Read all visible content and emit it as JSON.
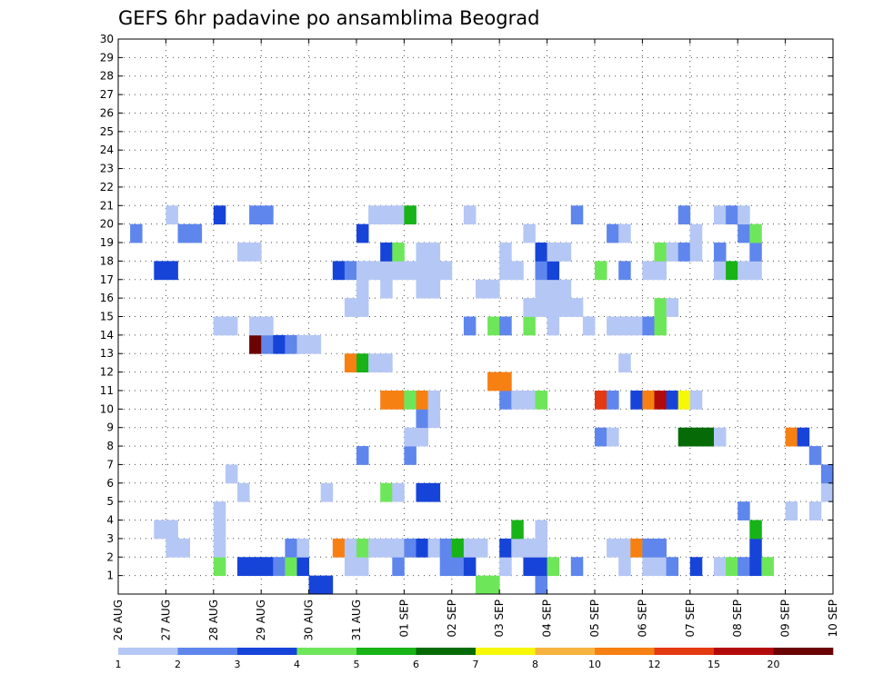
{
  "chart_data": {
    "type": "heatmap",
    "title": "GEFS 6hr padavine po ansamblima Beograd",
    "xlabel": "",
    "ylabel": "",
    "x_ticks": [
      "26 AUG",
      "27 AUG",
      "28 AUG",
      "29 AUG",
      "30 AUG",
      "31 AUG",
      "01 SEP",
      "02 SEP",
      "03 SEP",
      "04 SEP",
      "05 SEP",
      "06 SEP",
      "07 SEP",
      "08 SEP",
      "09 SEP",
      "10 SEP"
    ],
    "y_ticks": [
      "1",
      "2",
      "3",
      "4",
      "5",
      "6",
      "7",
      "8",
      "9",
      "10",
      "11",
      "12",
      "13",
      "14",
      "15",
      "16",
      "17",
      "18",
      "19",
      "20",
      "21",
      "22",
      "23",
      "24",
      "25",
      "26",
      "27",
      "28",
      "29",
      "30"
    ],
    "xlim": [
      0,
      60
    ],
    "ylim": [
      0,
      30
    ],
    "grid": true,
    "colorbar": {
      "labels": [
        "1",
        "2",
        "3",
        "4",
        "5",
        "6",
        "7",
        "8",
        "10",
        "12",
        "15",
        "20"
      ],
      "colors": [
        "#b5c7f4",
        "#5f86ec",
        "#1744d8",
        "#6ee65a",
        "#17b317",
        "#066b06",
        "#f7f708",
        "#f7b340",
        "#f78012",
        "#e33a12",
        "#b20a0a",
        "#6b0303"
      ]
    },
    "cells": [
      [
        16,
        0,
        3
      ],
      [
        17,
        0,
        3
      ],
      [
        30,
        0,
        4
      ],
      [
        31,
        0,
        4
      ],
      [
        35,
        0,
        2
      ],
      [
        8,
        1,
        4
      ],
      [
        10,
        1,
        3
      ],
      [
        11,
        1,
        3
      ],
      [
        12,
        1,
        3
      ],
      [
        13,
        1,
        2
      ],
      [
        14,
        1,
        4
      ],
      [
        15,
        1,
        3
      ],
      [
        19,
        1,
        1
      ],
      [
        20,
        1,
        1
      ],
      [
        23,
        1,
        2
      ],
      [
        27,
        1,
        2
      ],
      [
        28,
        1,
        2
      ],
      [
        29,
        1,
        3
      ],
      [
        32,
        1,
        1
      ],
      [
        34,
        1,
        3
      ],
      [
        35,
        1,
        3
      ],
      [
        36,
        1,
        4
      ],
      [
        38,
        1,
        2
      ],
      [
        42,
        1,
        1
      ],
      [
        44,
        1,
        1
      ],
      [
        45,
        1,
        1
      ],
      [
        46,
        1,
        2
      ],
      [
        48,
        1,
        3
      ],
      [
        50,
        1,
        1
      ],
      [
        51,
        1,
        4
      ],
      [
        52,
        1,
        2
      ],
      [
        53,
        1,
        3
      ],
      [
        54,
        1,
        4
      ],
      [
        4,
        2,
        1
      ],
      [
        5,
        2,
        1
      ],
      [
        8,
        2,
        1
      ],
      [
        14,
        2,
        2
      ],
      [
        15,
        2,
        1
      ],
      [
        18,
        2,
        9
      ],
      [
        19,
        2,
        1
      ],
      [
        20,
        2,
        4
      ],
      [
        21,
        2,
        1
      ],
      [
        22,
        2,
        1
      ],
      [
        23,
        2,
        1
      ],
      [
        24,
        2,
        2
      ],
      [
        25,
        2,
        3
      ],
      [
        26,
        2,
        1
      ],
      [
        27,
        2,
        2
      ],
      [
        28,
        2,
        5
      ],
      [
        29,
        2,
        1
      ],
      [
        30,
        2,
        1
      ],
      [
        32,
        2,
        3
      ],
      [
        33,
        2,
        1
      ],
      [
        34,
        2,
        1
      ],
      [
        35,
        2,
        1
      ],
      [
        41,
        2,
        1
      ],
      [
        42,
        2,
        1
      ],
      [
        43,
        2,
        9
      ],
      [
        44,
        2,
        2
      ],
      [
        45,
        2,
        2
      ],
      [
        53,
        2,
        3
      ],
      [
        3,
        3,
        1
      ],
      [
        4,
        3,
        1
      ],
      [
        8,
        3,
        1
      ],
      [
        33,
        3,
        5
      ],
      [
        35,
        3,
        1
      ],
      [
        53,
        3,
        5
      ],
      [
        8,
        4,
        1
      ],
      [
        52,
        4,
        2
      ],
      [
        56,
        4,
        1
      ],
      [
        58,
        4,
        1
      ],
      [
        10,
        5,
        1
      ],
      [
        17,
        5,
        1
      ],
      [
        22,
        5,
        4
      ],
      [
        23,
        5,
        1
      ],
      [
        25,
        5,
        3
      ],
      [
        26,
        5,
        3
      ],
      [
        59,
        5,
        1
      ],
      [
        9,
        6,
        1
      ],
      [
        59,
        6,
        2
      ],
      [
        20,
        7,
        2
      ],
      [
        24,
        7,
        2
      ],
      [
        58,
        7,
        2
      ],
      [
        56,
        8,
        9
      ],
      [
        57,
        8,
        3
      ],
      [
        24,
        8,
        1
      ],
      [
        25,
        8,
        1
      ],
      [
        40,
        8,
        2
      ],
      [
        41,
        8,
        1
      ],
      [
        47,
        8,
        6
      ],
      [
        48,
        8,
        6
      ],
      [
        49,
        8,
        6
      ],
      [
        50,
        8,
        1
      ],
      [
        25,
        9,
        2
      ],
      [
        26,
        9,
        1
      ],
      [
        22,
        10,
        9
      ],
      [
        23,
        10,
        9
      ],
      [
        24,
        10,
        4
      ],
      [
        25,
        10,
        9
      ],
      [
        26,
        10,
        1
      ],
      [
        32,
        10,
        2
      ],
      [
        33,
        10,
        1
      ],
      [
        34,
        10,
        1
      ],
      [
        35,
        10,
        4
      ],
      [
        40,
        10,
        10
      ],
      [
        41,
        10,
        2
      ],
      [
        43,
        10,
        3
      ],
      [
        44,
        10,
        9
      ],
      [
        45,
        10,
        11
      ],
      [
        46,
        10,
        3
      ],
      [
        47,
        10,
        7
      ],
      [
        48,
        10,
        1
      ],
      [
        31,
        11,
        9
      ],
      [
        32,
        11,
        9
      ],
      [
        19,
        12,
        9
      ],
      [
        20,
        12,
        5
      ],
      [
        21,
        12,
        1
      ],
      [
        22,
        12,
        1
      ],
      [
        42,
        12,
        1
      ],
      [
        11,
        13,
        12
      ],
      [
        12,
        13,
        2
      ],
      [
        13,
        13,
        3
      ],
      [
        14,
        13,
        2
      ],
      [
        15,
        13,
        1
      ],
      [
        16,
        13,
        1
      ],
      [
        8,
        14,
        1
      ],
      [
        9,
        14,
        1
      ],
      [
        11,
        14,
        1
      ],
      [
        12,
        14,
        1
      ],
      [
        29,
        14,
        2
      ],
      [
        31,
        14,
        4
      ],
      [
        32,
        14,
        2
      ],
      [
        34,
        14,
        4
      ],
      [
        36,
        14,
        1
      ],
      [
        39,
        14,
        1
      ],
      [
        41,
        14,
        1
      ],
      [
        42,
        14,
        1
      ],
      [
        43,
        14,
        1
      ],
      [
        44,
        14,
        2
      ],
      [
        45,
        14,
        4
      ],
      [
        19,
        15,
        1
      ],
      [
        20,
        15,
        1
      ],
      [
        34,
        15,
        1
      ],
      [
        35,
        15,
        1
      ],
      [
        36,
        15,
        1
      ],
      [
        37,
        15,
        1
      ],
      [
        38,
        15,
        1
      ],
      [
        45,
        15,
        4
      ],
      [
        46,
        15,
        1
      ],
      [
        20,
        16,
        1
      ],
      [
        22,
        16,
        1
      ],
      [
        25,
        16,
        1
      ],
      [
        26,
        16,
        1
      ],
      [
        30,
        16,
        1
      ],
      [
        31,
        16,
        1
      ],
      [
        35,
        16,
        1
      ],
      [
        36,
        16,
        1
      ],
      [
        37,
        16,
        1
      ],
      [
        3,
        17,
        3
      ],
      [
        4,
        17,
        3
      ],
      [
        18,
        17,
        3
      ],
      [
        19,
        17,
        2
      ],
      [
        20,
        17,
        1
      ],
      [
        21,
        17,
        1
      ],
      [
        22,
        17,
        1
      ],
      [
        23,
        17,
        1
      ],
      [
        24,
        17,
        1
      ],
      [
        25,
        17,
        1
      ],
      [
        26,
        17,
        1
      ],
      [
        27,
        17,
        1
      ],
      [
        32,
        17,
        1
      ],
      [
        33,
        17,
        1
      ],
      [
        35,
        17,
        2
      ],
      [
        36,
        17,
        3
      ],
      [
        40,
        17,
        4
      ],
      [
        42,
        17,
        2
      ],
      [
        44,
        17,
        1
      ],
      [
        45,
        17,
        1
      ],
      [
        50,
        17,
        1
      ],
      [
        51,
        17,
        5
      ],
      [
        52,
        17,
        1
      ],
      [
        53,
        17,
        1
      ],
      [
        10,
        18,
        1
      ],
      [
        11,
        18,
        1
      ],
      [
        22,
        18,
        3
      ],
      [
        23,
        18,
        4
      ],
      [
        25,
        18,
        1
      ],
      [
        26,
        18,
        1
      ],
      [
        32,
        18,
        1
      ],
      [
        35,
        18,
        3
      ],
      [
        36,
        18,
        1
      ],
      [
        37,
        18,
        1
      ],
      [
        45,
        18,
        4
      ],
      [
        46,
        18,
        1
      ],
      [
        47,
        18,
        2
      ],
      [
        48,
        18,
        1
      ],
      [
        50,
        18,
        2
      ],
      [
        53,
        18,
        2
      ],
      [
        1,
        19,
        2
      ],
      [
        5,
        19,
        2
      ],
      [
        6,
        19,
        2
      ],
      [
        20,
        19,
        3
      ],
      [
        34,
        19,
        1
      ],
      [
        41,
        19,
        2
      ],
      [
        42,
        19,
        1
      ],
      [
        48,
        19,
        1
      ],
      [
        52,
        19,
        2
      ],
      [
        53,
        19,
        4
      ],
      [
        4,
        20,
        1
      ],
      [
        8,
        20,
        3
      ],
      [
        11,
        20,
        2
      ],
      [
        12,
        20,
        2
      ],
      [
        21,
        20,
        1
      ],
      [
        22,
        20,
        1
      ],
      [
        23,
        20,
        1
      ],
      [
        24,
        20,
        5
      ],
      [
        29,
        20,
        1
      ],
      [
        38,
        20,
        2
      ],
      [
        47,
        20,
        2
      ],
      [
        50,
        20,
        1
      ],
      [
        51,
        20,
        2
      ],
      [
        52,
        20,
        1
      ]
    ]
  }
}
